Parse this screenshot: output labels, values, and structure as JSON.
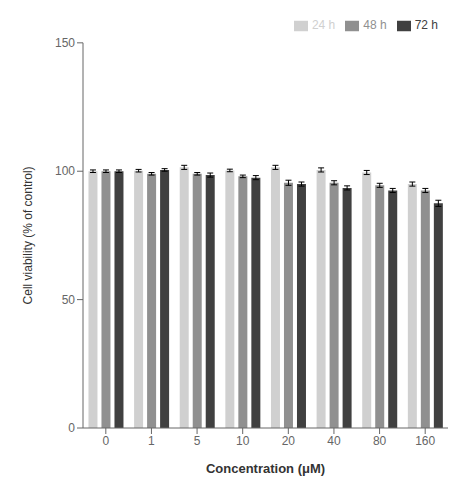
{
  "chart_data": {
    "type": "bar",
    "xlabel": "Concentration (μM)",
    "ylabel": "Cell viability (% of control)",
    "categories": [
      "0",
      "1",
      "5",
      "10",
      "20",
      "40",
      "80",
      "160"
    ],
    "series": [
      {
        "name": "24 h",
        "color": "#d0d0d0",
        "values": [
          100.0,
          100.2,
          101.5,
          100.3,
          101.5,
          100.5,
          99.5,
          95.0
        ],
        "errors": [
          0.5,
          0.5,
          0.8,
          0.5,
          0.8,
          0.8,
          0.8,
          0.8
        ]
      },
      {
        "name": "48 h",
        "color": "#909090",
        "values": [
          100.0,
          99.0,
          99.0,
          98.0,
          95.5,
          95.5,
          94.5,
          92.5
        ],
        "errors": [
          0.5,
          0.5,
          0.5,
          0.5,
          1.0,
          0.8,
          0.8,
          0.8
        ]
      },
      {
        "name": "72 h",
        "color": "#404040",
        "values": [
          100.0,
          100.5,
          98.5,
          97.5,
          95.0,
          93.5,
          92.5,
          87.5
        ],
        "errors": [
          0.5,
          0.5,
          0.8,
          0.8,
          0.8,
          0.8,
          0.8,
          1.2
        ]
      }
    ],
    "ylim": [
      0,
      150
    ],
    "yticks": [
      0,
      50,
      100,
      150
    ],
    "legend": "upper right"
  }
}
